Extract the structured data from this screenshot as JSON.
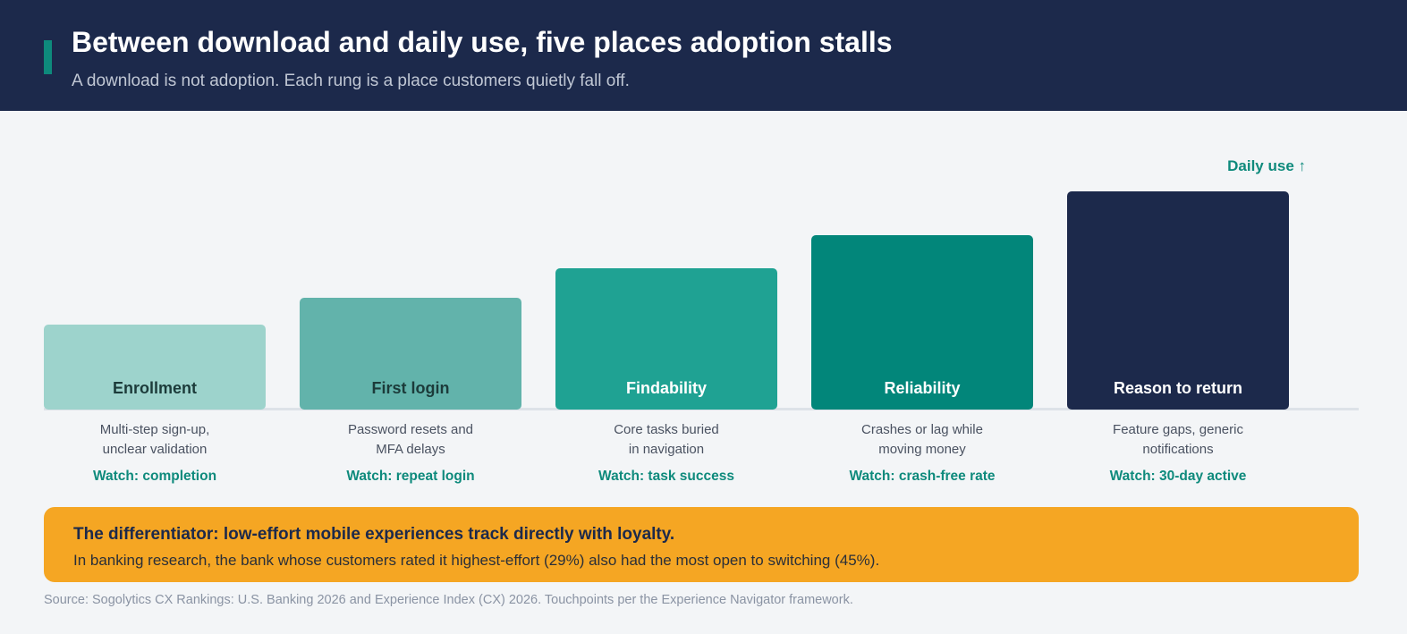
{
  "header": {
    "title": "Between download and daily use, five places adoption stalls",
    "subtitle": "A download is not adoption. Each rung is a place customers quietly fall off."
  },
  "direction_label": "Daily use ↑",
  "stages": [
    {
      "label": "Enrollment",
      "desc_line1": "Multi-step sign-up,",
      "desc_line2": "unclear validation",
      "watch": "Watch: completion",
      "rung": 1,
      "bar_color": "#9dd3cc",
      "label_color": "#1c3b3a"
    },
    {
      "label": "First login",
      "desc_line1": "Password resets and",
      "desc_line2": "MFA delays",
      "watch": "Watch: repeat login",
      "rung": 2,
      "bar_color": "#62b3ab",
      "label_color": "#1c3b3a"
    },
    {
      "label": "Findability",
      "desc_line1": "Core tasks buried",
      "desc_line2": "in navigation",
      "watch": "Watch: task success",
      "rung": 3,
      "bar_color": "#1fa293",
      "label_color": "#ffffff"
    },
    {
      "label": "Reliability",
      "desc_line1": "Crashes or lag while",
      "desc_line2": "moving money",
      "watch": "Watch: crash-free rate",
      "rung": 4,
      "bar_color": "#02867a",
      "label_color": "#ffffff"
    },
    {
      "label": "Reason to return",
      "desc_line1": "Feature gaps, generic",
      "desc_line2": "notifications",
      "watch": "Watch: 30-day active",
      "rung": 5,
      "bar_color": "#1c294b",
      "label_color": "#ffffff"
    }
  ],
  "callout": {
    "headline": "The differentiator: low-effort mobile experiences track directly with loyalty.",
    "body": "In banking research, the bank whose customers rated it highest-effort (29%) also had the most open to switching (45%).",
    "color": "#f5a623"
  },
  "source": "Source: Sogolytics CX Rankings: U.S. Banking 2026 and Experience Index (CX) 2026. Touchpoints per the Experience Navigator framework."
}
